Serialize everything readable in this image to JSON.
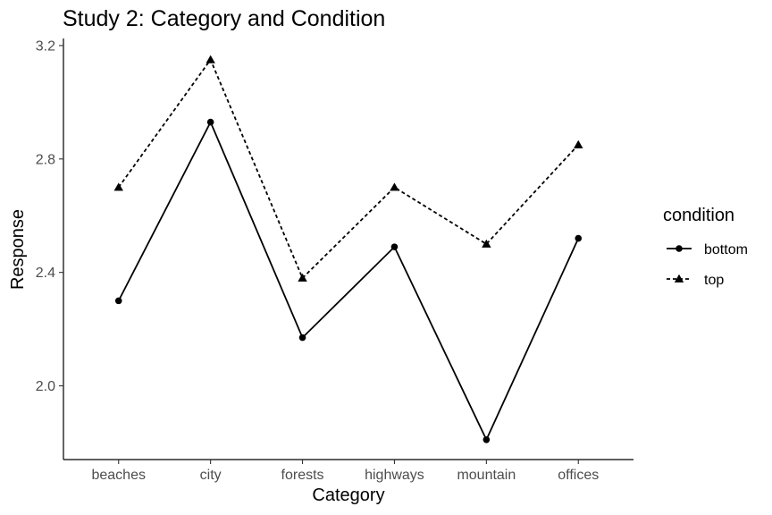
{
  "chart_data": {
    "type": "line",
    "title": "Study 2: Category and Condition",
    "xlabel": "Category",
    "ylabel": "Response",
    "categories": [
      "beaches",
      "city",
      "forests",
      "highways",
      "mountain",
      "offices"
    ],
    "ylim": [
      1.74,
      3.225
    ],
    "yticks": [
      2.0,
      2.4,
      2.8,
      3.2
    ],
    "ytick_labels": [
      "2.0",
      "2.4",
      "2.8",
      "3.2"
    ],
    "grid": false,
    "legend": {
      "title": "condition",
      "position": "right"
    },
    "series": [
      {
        "name": "bottom",
        "values": [
          2.3,
          2.93,
          2.17,
          2.49,
          1.81,
          2.52
        ],
        "marker": "circle",
        "linestyle": "solid",
        "color": "#000000"
      },
      {
        "name": "top",
        "values": [
          2.7,
          3.15,
          2.38,
          2.7,
          2.5,
          2.85
        ],
        "marker": "triangle",
        "linestyle": "dashed",
        "color": "#000000"
      }
    ]
  }
}
